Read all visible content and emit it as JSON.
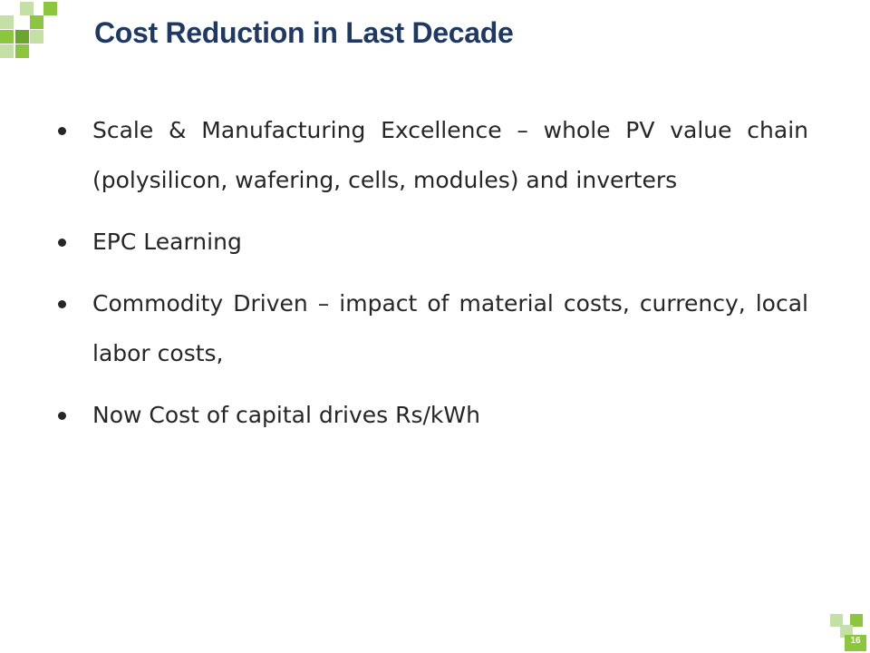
{
  "slide": {
    "title": "Cost Reduction in Last Decade",
    "bullets": [
      {
        "text": "Scale & Manufacturing Excellence – whole PV value chain (polysilicon, wafering, cells, modules) and inverters"
      },
      {
        "text": "EPC Learning"
      },
      {
        "text": "Commodity Driven – impact of material costs, currency, local labor costs,"
      },
      {
        "text": "Now Cost of capital drives Rs/kWh"
      }
    ],
    "page_number": "16"
  },
  "colors": {
    "title": "#1f3864",
    "body_text": "#262626",
    "accent_green": "#8cc63f",
    "accent_light_green": "#c5e0a5",
    "accent_dark_green": "#6aa52e"
  },
  "decorations": {
    "top_left_icon": "green-pixel-mosaic",
    "bottom_right_icon": "green-pixel-mosaic"
  }
}
